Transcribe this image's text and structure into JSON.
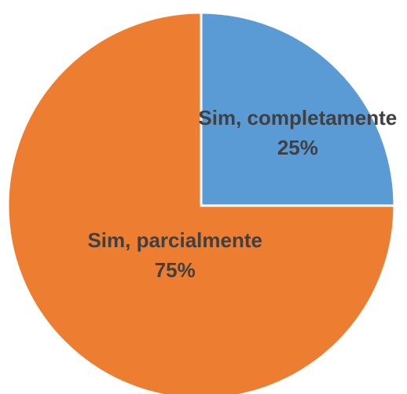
{
  "chart_data": {
    "type": "pie",
    "categories": [
      "Sim, completamente",
      "Sim, parcialmente"
    ],
    "values": [
      25,
      75
    ],
    "value_labels": [
      "25%",
      "75%"
    ],
    "colors": [
      "#5b9bd5",
      "#ed7d31"
    ]
  }
}
